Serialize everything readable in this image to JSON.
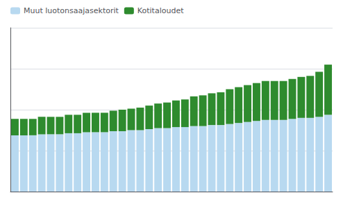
{
  "chart_data": {
    "type": "bar",
    "categories": [
      null,
      null,
      null,
      null,
      null,
      null,
      null,
      null,
      null,
      null,
      null,
      null,
      null,
      null,
      null,
      null,
      null,
      null,
      null,
      null,
      null,
      null,
      null,
      null,
      null,
      null,
      null,
      null,
      null,
      null,
      null,
      null,
      null,
      null,
      null,
      null
    ],
    "series": [
      {
        "name": "Muut luotonsaajasektorit",
        "color": "#b8d9f0",
        "values": [
          55,
          55,
          55,
          56,
          56,
          56,
          57,
          57,
          58,
          58,
          58,
          59,
          59,
          60,
          60,
          61,
          62,
          62,
          63,
          63,
          64,
          64,
          65,
          65,
          66,
          67,
          68,
          69,
          70,
          70,
          70,
          71,
          72,
          72,
          73,
          75
        ]
      },
      {
        "name": "Kotitaloudet",
        "color": "#2e8b2e",
        "values": [
          16,
          16,
          16,
          17,
          17,
          17,
          18,
          18,
          19,
          19,
          19,
          20,
          21,
          21,
          22,
          23,
          24,
          25,
          26,
          27,
          29,
          30,
          31,
          32,
          34,
          35,
          36,
          37,
          38,
          38,
          38,
          39,
          40,
          41,
          44,
          49
        ]
      }
    ],
    "stacked": true,
    "ylim": [
      0,
      160
    ],
    "yticks": [
      0,
      40,
      80,
      120,
      160
    ],
    "grid": true,
    "legend": "upper left",
    "tick_labels": false
  }
}
